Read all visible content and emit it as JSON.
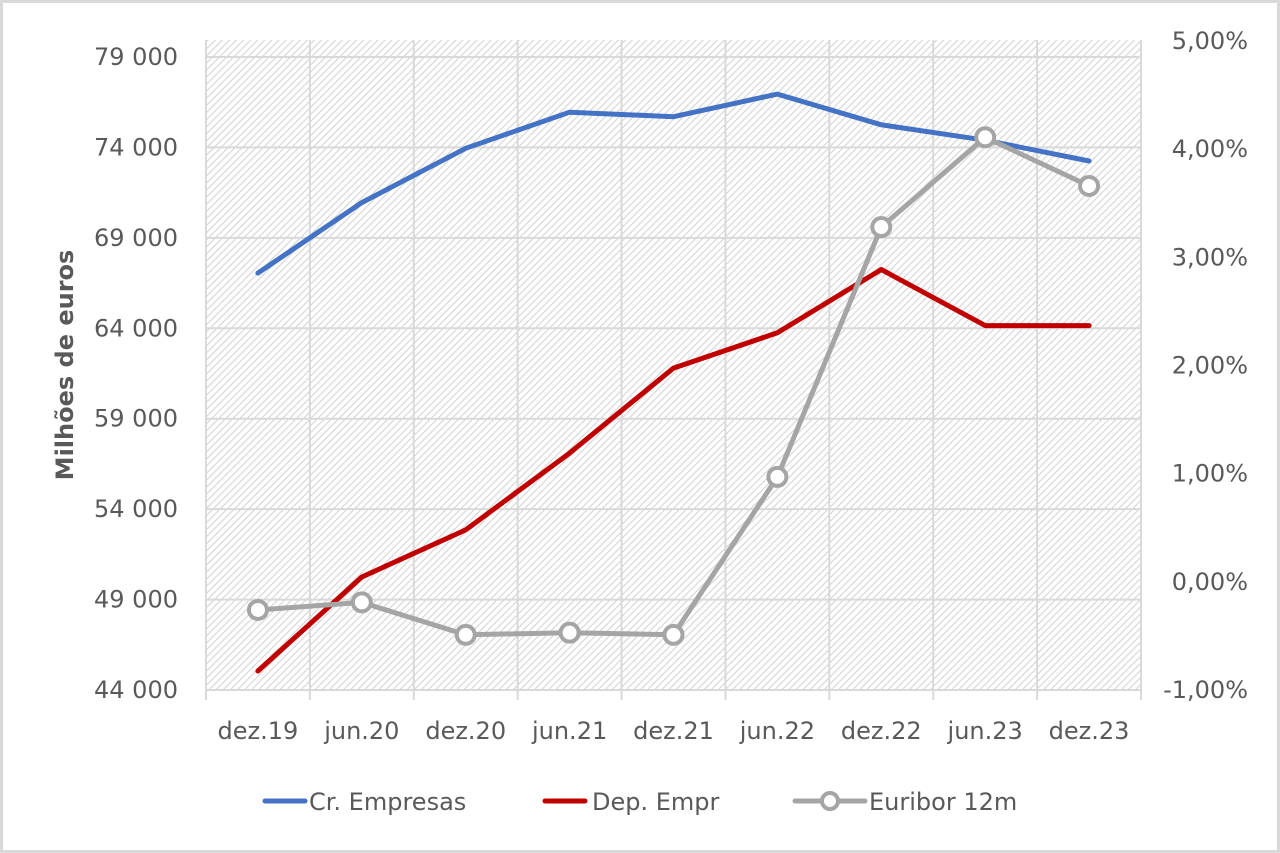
{
  "chart_data": {
    "type": "line",
    "title": "",
    "xlabel": "",
    "ylabel": "Milhões de euros",
    "y2label": "",
    "categories": [
      "dez.19",
      "jun.20",
      "dez.20",
      "jun.21",
      "dez.21",
      "jun.22",
      "dez.22",
      "jun.23",
      "dez.23"
    ],
    "series": [
      {
        "name": "Cr. Empresas",
        "axis": "left",
        "color": "#4472C4",
        "marker": "none",
        "values": [
          67050,
          70950,
          73950,
          75950,
          75700,
          76950,
          75250,
          74400,
          73250
        ]
      },
      {
        "name": "Dep. Empr",
        "axis": "left",
        "color": "#C00000",
        "marker": "none",
        "values": [
          45050,
          50250,
          52850,
          57100,
          61800,
          63750,
          67250,
          64150,
          64150
        ]
      },
      {
        "name": "Euribor 12m",
        "axis": "right",
        "color": "#A5A5A5",
        "marker": "circle",
        "values": [
          -0.26,
          -0.19,
          -0.49,
          -0.47,
          -0.49,
          0.97,
          3.28,
          4.11,
          3.66
        ]
      }
    ],
    "ylim": [
      44000,
      80000
    ],
    "yticks": [
      "79 000",
      "74 000",
      "69 000",
      "64 000",
      "59 000",
      "54 000",
      "49 000",
      "44 000"
    ],
    "ytick_values": [
      79000,
      74000,
      69000,
      64000,
      59000,
      54000,
      49000,
      44000
    ],
    "y2lim": [
      -1.0,
      5.0
    ],
    "y2ticks": [
      "5,00%",
      "4,00%",
      "3,00%",
      "2,00%",
      "1,00%",
      "0,00%",
      "-1,00%"
    ],
    "y2tick_values": [
      5,
      4,
      3,
      2,
      1,
      0,
      -1
    ],
    "grid": true,
    "plot_background": "diagonal-hatch",
    "legend_position": "bottom"
  },
  "legend": {
    "items": [
      {
        "label": "Cr. Empresas",
        "color": "#4472C4"
      },
      {
        "label": "Dep. Empr",
        "color": "#C00000"
      },
      {
        "label": "Euribor 12m",
        "color": "#A5A5A5"
      }
    ]
  },
  "colors": {
    "grid": "#D9D9D9",
    "text": "#595959",
    "hatch": "#D4D4D4"
  }
}
